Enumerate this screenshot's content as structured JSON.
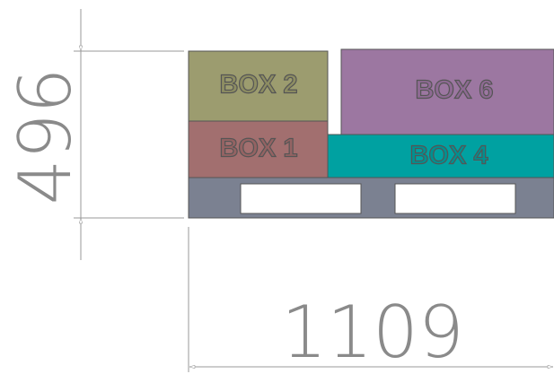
{
  "dimensions": {
    "height": "496",
    "width": "1109"
  },
  "boxes": [
    {
      "label": "BOX 2"
    },
    {
      "label": "BOX 1"
    },
    {
      "label": "BOX 6"
    },
    {
      "label": "BOX 4"
    }
  ]
}
